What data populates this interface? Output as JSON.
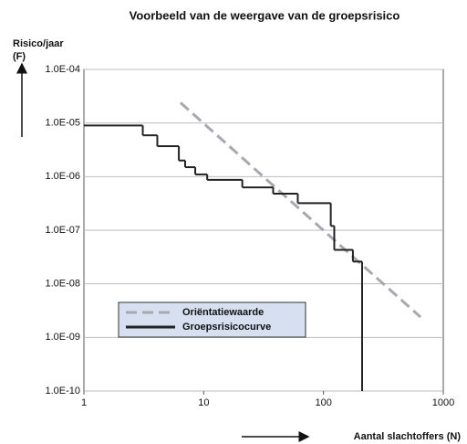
{
  "chart_data": {
    "type": "line",
    "title": "Voorbeeld van de weergave van de groepsrisico",
    "y_label": "Risico/jaar",
    "y_unit": "(F)",
    "x_label": "Aantal slachtoffers (N)",
    "x_log": true,
    "y_log": true,
    "grid": true,
    "xlim": [
      1,
      1000
    ],
    "xticks": [
      1,
      10,
      100,
      1000
    ],
    "ylim": [
      1e-10,
      0.0001
    ],
    "yticks": [
      {
        "value": 0.0001,
        "label": "1.0E-04"
      },
      {
        "value": 1e-05,
        "label": "1.0E-05"
      },
      {
        "value": 1e-06,
        "label": "1.0E-06"
      },
      {
        "value": 1e-07,
        "label": "1.0E-07"
      },
      {
        "value": 1e-08,
        "label": "1.0E-08"
      },
      {
        "value": 1e-09,
        "label": "1.0E-09"
      },
      {
        "value": 1e-10,
        "label": "1.0E-10"
      }
    ],
    "series": [
      {
        "name": "Oriëntatiewaarde",
        "color": "#a8a8b0",
        "dashed": true,
        "x": [
          6.4,
          645
        ],
        "values": [
          2.4e-05,
          2.4e-09
        ]
      },
      {
        "name": "Groepsrisicocurve",
        "color": "#222222",
        "step": true,
        "x": [
          1,
          3.1,
          4.1,
          6.2,
          7,
          8.5,
          10.7,
          21,
          38,
          61,
          115,
          123,
          176,
          210
        ],
        "values": [
          9e-06,
          5.9e-06,
          3.7e-06,
          2e-06,
          1.5e-06,
          1.1e-06,
          8.7e-07,
          6.3e-07,
          4.8e-07,
          3.2e-07,
          1.2e-07,
          4.3e-08,
          2.6e-08,
          1e-10
        ]
      }
    ]
  }
}
